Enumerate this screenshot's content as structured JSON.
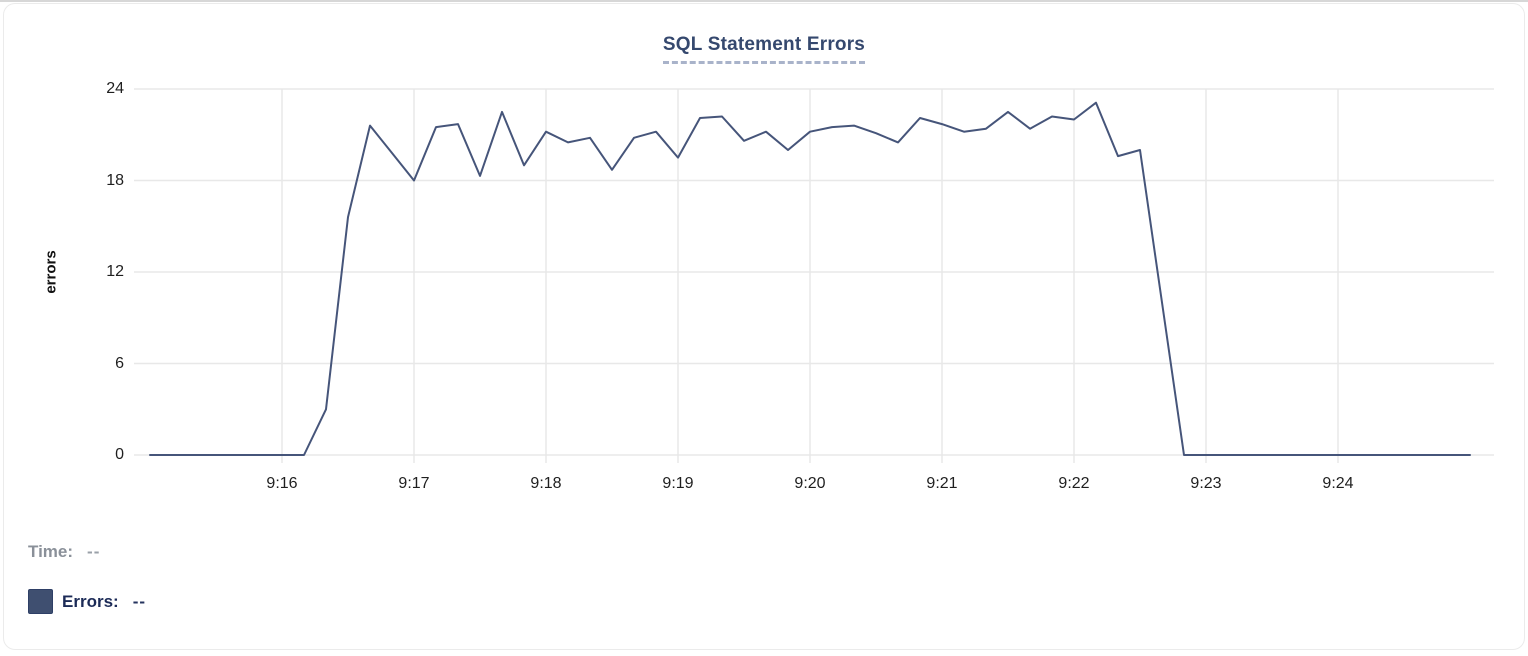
{
  "chart_data": {
    "type": "line",
    "title": "SQL Statement Errors",
    "xlabel": "",
    "ylabel": "errors",
    "ylim": [
      0,
      24
    ],
    "y_ticks": [
      0,
      6,
      12,
      18,
      24
    ],
    "x_range": {
      "start": "9:15:00",
      "end": "9:25:00"
    },
    "x_tick_labels": [
      "9:16",
      "9:17",
      "9:18",
      "9:19",
      "9:20",
      "9:21",
      "9:22",
      "9:23",
      "9:24"
    ],
    "grid": true,
    "legend_position": "bottom",
    "series": [
      {
        "name": "Errors",
        "color": "#46557a",
        "start_time": "9:15:00",
        "interval_seconds": 10,
        "values": [
          0,
          0,
          0,
          0,
          0,
          0,
          0,
          0,
          3,
          15.6,
          21.6,
          19.8,
          18,
          21.5,
          21.7,
          18.3,
          22.5,
          19,
          21.2,
          20.5,
          20.8,
          18.7,
          20.8,
          21.2,
          19.5,
          22.1,
          22.2,
          20.6,
          21.2,
          20,
          21.2,
          21.5,
          21.6,
          21.1,
          20.5,
          22.1,
          21.7,
          21.2,
          21.4,
          22.5,
          21.4,
          22.2,
          22,
          23.1,
          19.6,
          20,
          10,
          0,
          0,
          0,
          0,
          0,
          0,
          0,
          0,
          0,
          0,
          0,
          0,
          0,
          0
        ]
      }
    ]
  },
  "tooltip": {
    "time_label": "Time:",
    "time_value": "--",
    "errors_label": "Errors:",
    "errors_value": "--"
  },
  "colors": {
    "line": "#46557a",
    "grid": "#e8e8e8",
    "title": "#35486e",
    "title_underline": "#a9b3ca",
    "legend_swatch": "#3f4f70",
    "time_text": "#8a9099",
    "errors_text": "#1c2b57"
  }
}
